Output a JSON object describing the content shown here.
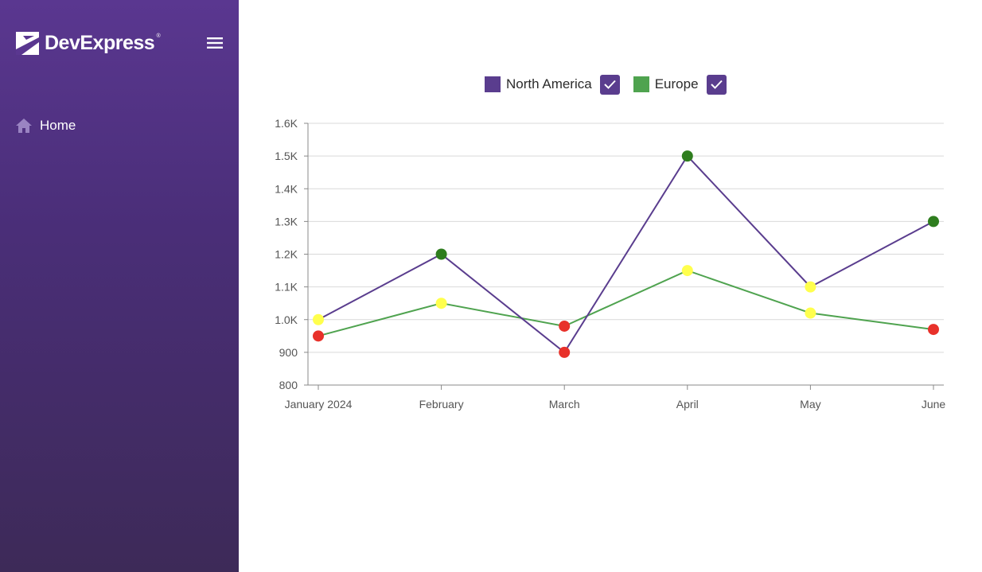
{
  "sidebar": {
    "brand_name": "DevExpress",
    "brand_reg": "®",
    "menu_icon": "hamburger-menu-icon",
    "nav": [
      {
        "label": "Home",
        "icon": "home-icon"
      }
    ],
    "colors": {
      "top": "#5a3790",
      "bottom": "#3d2a58"
    }
  },
  "legend": [
    {
      "label": "North America",
      "color": "#5a3d8e",
      "checked": true
    },
    {
      "label": "Europe",
      "color": "#4fa34f",
      "checked": true
    }
  ],
  "chart_data": {
    "type": "line",
    "x": [
      "January 2024",
      "February",
      "March",
      "April",
      "May",
      "June"
    ],
    "series": [
      {
        "name": "North America",
        "color": "#5a3d8e",
        "values": [
          1000,
          1200,
          900,
          1500,
          1100,
          1300
        ],
        "point_colors": [
          "#ffff4d",
          "#2e7d1e",
          "#e8312a",
          "#2e7d1e",
          "#ffff4d",
          "#2e7d1e"
        ]
      },
      {
        "name": "Europe",
        "color": "#4fa34f",
        "values": [
          950,
          1050,
          980,
          1150,
          1020,
          970
        ],
        "point_colors": [
          "#e8312a",
          "#ffff4d",
          "#e8312a",
          "#ffff4d",
          "#ffff4d",
          "#e8312a"
        ]
      }
    ],
    "ylim": [
      800,
      1600
    ],
    "yticks": [
      800,
      900,
      1000,
      1100,
      1200,
      1300,
      1400,
      1500,
      1600
    ],
    "ytick_labels": [
      "800",
      "900",
      "1.0K",
      "1.1K",
      "1.2K",
      "1.3K",
      "1.4K",
      "1.5K",
      "1.6K"
    ],
    "grid": true,
    "legend_position": "top-center",
    "title": "",
    "xlabel": "",
    "ylabel": ""
  }
}
